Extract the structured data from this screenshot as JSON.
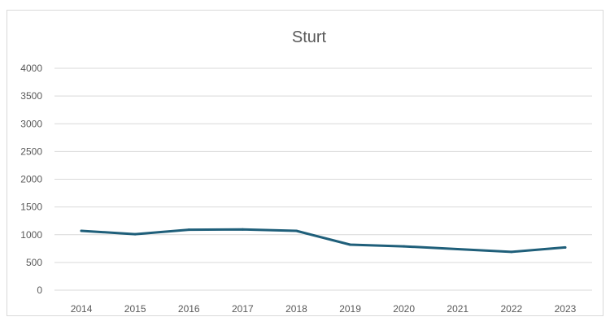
{
  "chart_data": {
    "type": "line",
    "title": "Sturt",
    "xlabel": "",
    "ylabel": "",
    "categories": [
      "2014",
      "2015",
      "2016",
      "2017",
      "2018",
      "2019",
      "2020",
      "2021",
      "2022",
      "2023"
    ],
    "series": [
      {
        "values": [
          1070,
          1010,
          1090,
          1095,
          1070,
          820,
          790,
          740,
          690,
          770
        ]
      }
    ],
    "ylim": [
      0,
      4000
    ],
    "yticks": [
      0,
      500,
      1000,
      1500,
      2000,
      2500,
      3000,
      3500,
      4000
    ],
    "grid": true,
    "legend": "none",
    "colors": {
      "line": "#1f5f7a",
      "grid": "#d9d9d9",
      "text": "#595959"
    }
  }
}
